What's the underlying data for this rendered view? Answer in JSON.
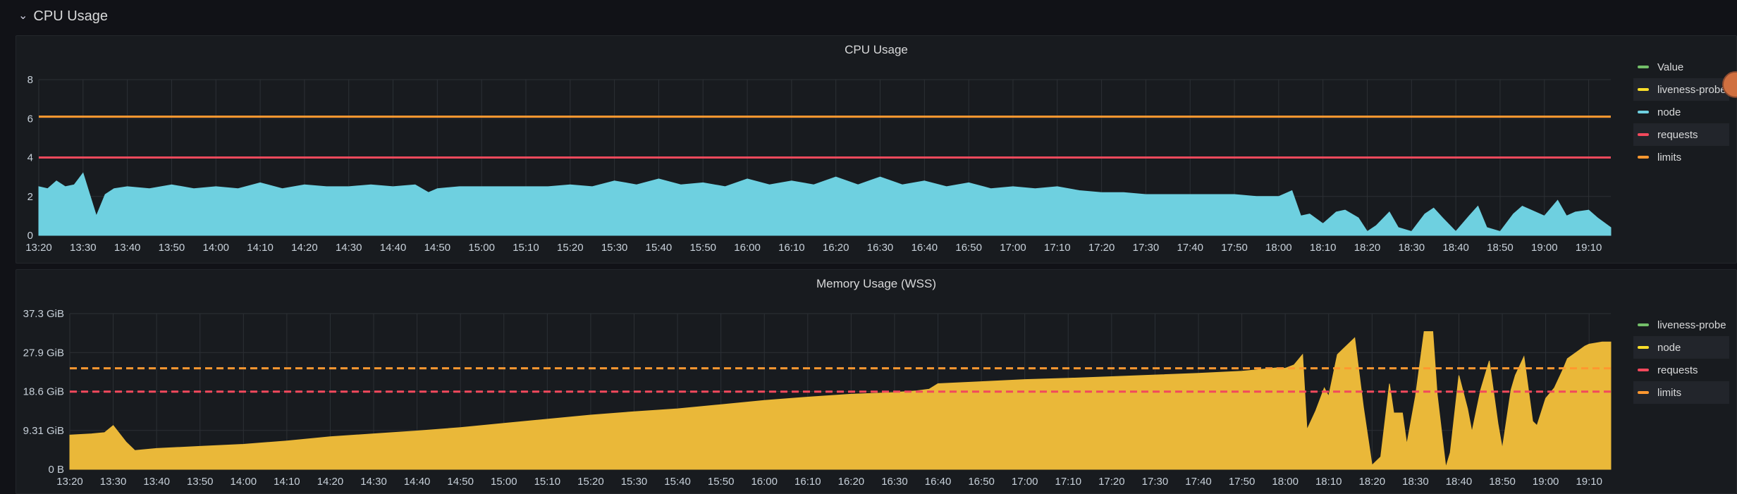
{
  "row": {
    "title": "CPU Usage"
  },
  "cpu_panel": {
    "title": "CPU Usage",
    "legend": [
      {
        "label": "Value",
        "color": "#73bf69"
      },
      {
        "label": "liveness-probe",
        "color": "#fade2a"
      },
      {
        "label": "node",
        "color": "#6ed0e0"
      },
      {
        "label": "requests",
        "color": "#f2495c"
      },
      {
        "label": "limits",
        "color": "#ff9830"
      }
    ]
  },
  "memory_panel": {
    "title": "Memory Usage (WSS)",
    "legend": [
      {
        "label": "liveness-probe",
        "color": "#73bf69"
      },
      {
        "label": "node",
        "color": "#fade2a"
      },
      {
        "label": "requests",
        "color": "#f2495c"
      },
      {
        "label": "limits",
        "color": "#ff9830"
      }
    ]
  },
  "chart_data": [
    {
      "type": "area",
      "title": "CPU Usage",
      "x_ticks": [
        "13:20",
        "13:30",
        "13:40",
        "13:50",
        "14:00",
        "14:10",
        "14:20",
        "14:30",
        "14:40",
        "14:50",
        "15:00",
        "15:10",
        "15:20",
        "15:30",
        "15:40",
        "15:50",
        "16:00",
        "16:10",
        "16:20",
        "16:30",
        "16:40",
        "16:50",
        "17:00",
        "17:10",
        "17:20",
        "17:30",
        "17:40",
        "17:50",
        "18:00",
        "18:10",
        "18:20",
        "18:30",
        "18:40",
        "18:50",
        "19:00",
        "19:10"
      ],
      "y_ticks": [
        "0",
        "2",
        "4",
        "6",
        "8"
      ],
      "ylim": [
        0,
        8
      ],
      "xlim": [
        "13:20",
        "19:15"
      ],
      "series": [
        {
          "name": "node",
          "color": "#6ed0e0",
          "fill": true,
          "x": [
            "13:20",
            "13:22",
            "13:24",
            "13:26",
            "13:28",
            "13:30",
            "13:33",
            "13:35",
            "13:37",
            "13:40",
            "13:45",
            "13:50",
            "13:55",
            "14:00",
            "14:05",
            "14:10",
            "14:15",
            "14:20",
            "14:25",
            "14:30",
            "14:35",
            "14:40",
            "14:45",
            "14:48",
            "14:50",
            "14:55",
            "15:00",
            "15:05",
            "15:10",
            "15:15",
            "15:20",
            "15:25",
            "15:30",
            "15:35",
            "15:40",
            "15:45",
            "15:50",
            "15:55",
            "16:00",
            "16:05",
            "16:10",
            "16:15",
            "16:20",
            "16:25",
            "16:30",
            "16:35",
            "16:40",
            "16:45",
            "16:50",
            "16:55",
            "17:00",
            "17:05",
            "17:10",
            "17:15",
            "17:20",
            "17:25",
            "17:30",
            "17:35",
            "17:40",
            "17:45",
            "17:50",
            "17:55",
            "18:00",
            "18:03",
            "18:05",
            "18:07",
            "18:10",
            "18:13",
            "18:15",
            "18:18",
            "18:20",
            "18:22",
            "18:25",
            "18:27",
            "18:30",
            "18:33",
            "18:35",
            "18:37",
            "18:40",
            "18:43",
            "18:45",
            "18:47",
            "18:50",
            "18:53",
            "18:55",
            "18:57",
            "19:00",
            "19:03",
            "19:05",
            "19:07",
            "19:10",
            "19:12",
            "19:15"
          ],
          "y": [
            2.5,
            2.4,
            2.8,
            2.5,
            2.6,
            3.2,
            1.0,
            2.1,
            2.4,
            2.5,
            2.4,
            2.6,
            2.4,
            2.5,
            2.4,
            2.7,
            2.4,
            2.6,
            2.5,
            2.5,
            2.6,
            2.5,
            2.6,
            2.2,
            2.4,
            2.5,
            2.5,
            2.5,
            2.5,
            2.5,
            2.6,
            2.5,
            2.8,
            2.6,
            2.9,
            2.6,
            2.7,
            2.5,
            2.9,
            2.6,
            2.8,
            2.6,
            3.0,
            2.6,
            3.0,
            2.6,
            2.8,
            2.5,
            2.7,
            2.4,
            2.5,
            2.4,
            2.5,
            2.3,
            2.2,
            2.2,
            2.1,
            2.1,
            2.1,
            2.1,
            2.1,
            2.0,
            2.0,
            2.3,
            1.0,
            1.1,
            0.6,
            1.2,
            1.3,
            0.9,
            0.2,
            0.5,
            1.2,
            0.4,
            0.2,
            1.1,
            1.4,
            0.9,
            0.2,
            1.0,
            1.5,
            0.4,
            0.2,
            1.1,
            1.5,
            1.3,
            1.0,
            1.8,
            1.0,
            1.2,
            1.3,
            0.9,
            0.4
          ]
        },
        {
          "name": "requests",
          "color": "#f2495c",
          "x": [
            "13:20",
            "19:15"
          ],
          "y": [
            4,
            4
          ]
        },
        {
          "name": "limits",
          "color": "#ff9830",
          "x": [
            "13:20",
            "19:15"
          ],
          "y": [
            6.1,
            6.1
          ]
        }
      ]
    },
    {
      "type": "area",
      "title": "Memory Usage (WSS)",
      "x_ticks": [
        "13:20",
        "13:30",
        "13:40",
        "13:50",
        "14:00",
        "14:10",
        "14:20",
        "14:30",
        "14:40",
        "14:50",
        "15:00",
        "15:10",
        "15:20",
        "15:30",
        "15:40",
        "15:50",
        "16:00",
        "16:10",
        "16:20",
        "16:30",
        "16:40",
        "16:50",
        "17:00",
        "17:10",
        "17:20",
        "17:30",
        "17:40",
        "17:50",
        "18:00",
        "18:10",
        "18:20",
        "18:30",
        "18:40",
        "18:50",
        "19:00",
        "19:10"
      ],
      "y_ticks": [
        "0 B",
        "9.31 GiB",
        "18.6 GiB",
        "27.9 GiB",
        "37.3 GiB"
      ],
      "ylim": [
        0,
        37.3
      ],
      "xlim": [
        "13:20",
        "19:15"
      ],
      "series": [
        {
          "name": "node",
          "color": "#eab839",
          "fill": true,
          "x": [
            "13:20",
            "13:25",
            "13:28",
            "13:30",
            "13:33",
            "13:35",
            "13:40",
            "13:50",
            "14:00",
            "14:10",
            "14:20",
            "14:30",
            "14:40",
            "14:50",
            "15:00",
            "15:10",
            "15:20",
            "15:30",
            "15:40",
            "15:50",
            "16:00",
            "16:10",
            "16:20",
            "16:30",
            "16:35",
            "16:38",
            "16:40",
            "16:50",
            "17:00",
            "17:10",
            "17:20",
            "17:30",
            "17:40",
            "17:50",
            "17:55",
            "17:58",
            "18:00",
            "18:02",
            "18:04",
            "18:05",
            "18:07",
            "18:09",
            "18:10",
            "18:12",
            "18:14",
            "18:16",
            "18:18",
            "18:20",
            "18:22",
            "18:24",
            "18:25",
            "18:27",
            "18:28",
            "18:30",
            "18:32",
            "18:34",
            "18:35",
            "18:37",
            "18:38",
            "18:40",
            "18:42",
            "18:43",
            "18:45",
            "18:47",
            "18:49",
            "18:50",
            "18:52",
            "18:53",
            "18:55",
            "18:57",
            "18:58",
            "19:00",
            "19:02",
            "19:04",
            "19:05",
            "19:07",
            "19:09",
            "19:10",
            "19:13",
            "19:15"
          ],
          "y": [
            8.2,
            8.5,
            8.8,
            10.5,
            6.5,
            4.5,
            5.0,
            5.5,
            6.0,
            6.8,
            7.8,
            8.5,
            9.2,
            10.0,
            11.0,
            12.0,
            13.0,
            13.8,
            14.5,
            15.5,
            16.5,
            17.3,
            18.0,
            18.4,
            18.8,
            19.2,
            20.5,
            21.0,
            21.5,
            21.8,
            22.2,
            22.6,
            23.0,
            23.5,
            24.0,
            24.3,
            24.2,
            25.0,
            27.5,
            9.5,
            14.0,
            19.5,
            17.5,
            27.5,
            29.5,
            31.5,
            15.0,
            1.0,
            3.0,
            20.5,
            13.5,
            13.5,
            6.0,
            17.5,
            33.0,
            33.0,
            18.0,
            0.5,
            4.0,
            22.5,
            14.5,
            9.0,
            19.0,
            26.0,
            11.0,
            5.0,
            19.0,
            22.5,
            27.0,
            11.5,
            10.5,
            17.0,
            19.5,
            24.0,
            26.5,
            28.0,
            29.5,
            30.0,
            30.5,
            30.5
          ]
        },
        {
          "name": "requests",
          "color": "#f2495c",
          "dashed": true,
          "x": [
            "13:20",
            "19:15"
          ],
          "y": [
            18.6,
            18.6
          ]
        },
        {
          "name": "limits",
          "color": "#ff9830",
          "dashed": true,
          "x": [
            "13:20",
            "19:15"
          ],
          "y": [
            24.2,
            24.2
          ]
        }
      ]
    }
  ]
}
